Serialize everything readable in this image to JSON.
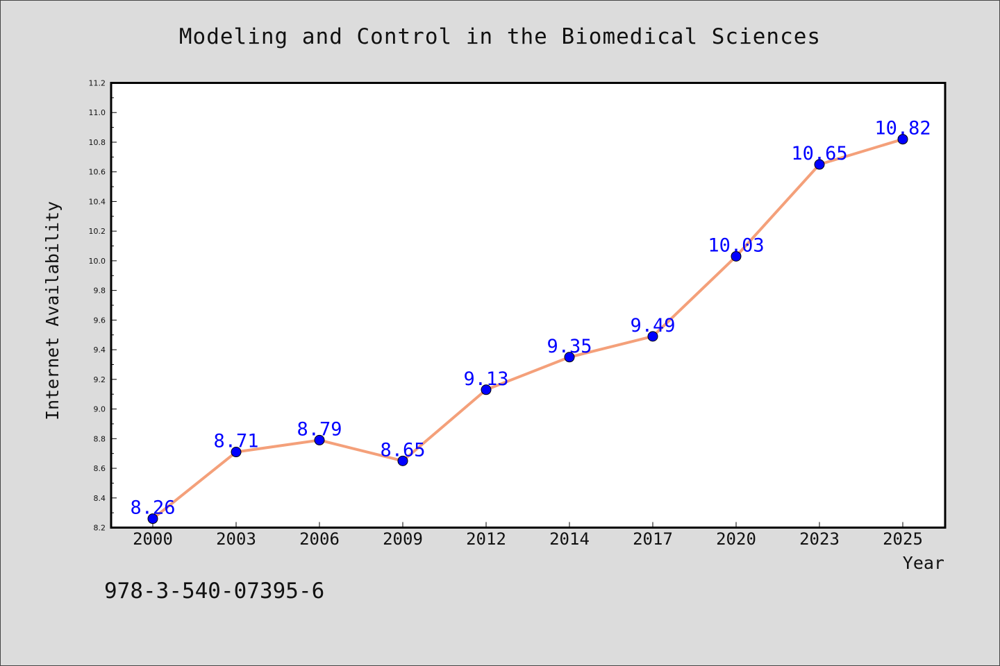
{
  "chart_data": {
    "type": "line",
    "title": "Modeling and Control in the Biomedical Sciences",
    "xlabel": "Year",
    "ylabel": "Internet Availability",
    "categories": [
      "2000",
      "2003",
      "2006",
      "2009",
      "2012",
      "2014",
      "2017",
      "2020",
      "2023",
      "2025"
    ],
    "series": [
      {
        "values": [
          8.26,
          8.71,
          8.79,
          8.65,
          9.13,
          9.35,
          9.49,
          10.03,
          10.65,
          10.82
        ],
        "value_labels": [
          "8.26",
          "8.71",
          "8.79",
          "8.65",
          "9.13",
          "9.35",
          "9.49",
          "10.03",
          "10.65",
          "10.82"
        ]
      }
    ],
    "ylim": [
      8.2,
      11.2
    ],
    "yticks": [
      "8.2",
      "8.4",
      "8.6",
      "8.8",
      "9.0",
      "9.2",
      "9.4",
      "9.6",
      "9.8",
      "10.0",
      "10.2",
      "10.4",
      "10.6",
      "10.8",
      "11.0",
      "11.2"
    ],
    "grid": false,
    "colors": {
      "line": "#f4a07a",
      "marker": "#0000ff",
      "data_label": "#0000ff",
      "plot_background": "#ffffff",
      "figure_background": "#dcdcdc"
    }
  },
  "footer": {
    "isbn": "978-3-540-07395-6"
  }
}
